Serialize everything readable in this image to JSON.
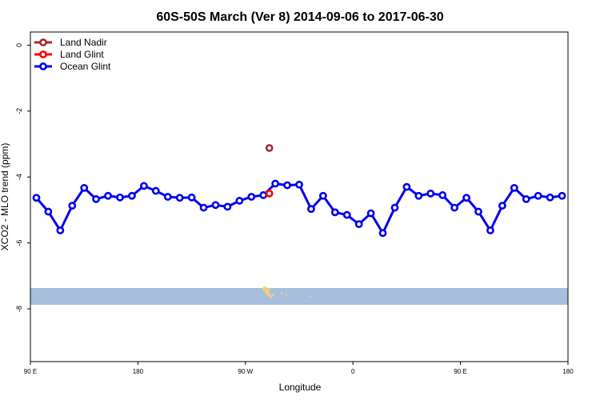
{
  "chart_data": {
    "type": "line",
    "title": "60S-50S March (Ver 8)   2014-09-06 to 2017-06-30",
    "xlabel": "Longitude",
    "ylabel": "XCO2 - MLO trend (ppm)",
    "xlim": [
      90,
      540
    ],
    "ylim": [
      -9.6,
      0.4
    ],
    "x_ticks": [
      {
        "value": 90,
        "label": "90 E"
      },
      {
        "value": 180,
        "label": "180"
      },
      {
        "value": 270,
        "label": "90 W"
      },
      {
        "value": 360,
        "label": "0"
      },
      {
        "value": 450,
        "label": "90 E"
      },
      {
        "value": 540,
        "label": "180"
      }
    ],
    "y_ticks": [
      {
        "value": 0,
        "label": "0"
      },
      {
        "value": -2,
        "label": "-2"
      },
      {
        "value": -4,
        "label": "-4"
      },
      {
        "value": -6,
        "label": "-6"
      },
      {
        "value": -8,
        "label": "-8"
      }
    ],
    "legend_position": "top-left",
    "grid": false,
    "series": [
      {
        "name": "Land Nadir",
        "color": "#a52a2a",
        "points": [
          [
            290,
            -3.12
          ]
        ]
      },
      {
        "name": "Land Glint",
        "color": "#ff0000",
        "points": [
          [
            290,
            -4.5
          ]
        ]
      },
      {
        "name": "Ocean Glint",
        "color": "#0000ee",
        "points": [
          [
            95,
            -4.63
          ],
          [
            105,
            -5.05
          ],
          [
            115,
            -5.62
          ],
          [
            125,
            -4.87
          ],
          [
            135,
            -4.33
          ],
          [
            145,
            -4.67
          ],
          [
            155,
            -4.57
          ],
          [
            165,
            -4.62
          ],
          [
            175,
            -4.57
          ],
          [
            185,
            -4.27
          ],
          [
            195,
            -4.42
          ],
          [
            205,
            -4.6
          ],
          [
            215,
            -4.63
          ],
          [
            225,
            -4.62
          ],
          [
            235,
            -4.93
          ],
          [
            245,
            -4.85
          ],
          [
            255,
            -4.9
          ],
          [
            265,
            -4.72
          ],
          [
            275,
            -4.6
          ],
          [
            285,
            -4.55
          ],
          [
            295,
            -4.2
          ],
          [
            305,
            -4.25
          ],
          [
            315,
            -4.23
          ],
          [
            325,
            -4.97
          ],
          [
            335,
            -4.57
          ],
          [
            345,
            -5.07
          ],
          [
            355,
            -5.15
          ],
          [
            365,
            -5.43
          ],
          [
            375,
            -5.1
          ],
          [
            385,
            -5.7
          ],
          [
            395,
            -4.93
          ],
          [
            405,
            -4.3
          ],
          [
            415,
            -4.57
          ],
          [
            425,
            -4.5
          ],
          [
            435,
            -4.55
          ],
          [
            445,
            -4.93
          ],
          [
            455,
            -4.63
          ],
          [
            465,
            -5.05
          ],
          [
            475,
            -5.62
          ],
          [
            485,
            -4.87
          ],
          [
            495,
            -4.33
          ],
          [
            505,
            -4.67
          ],
          [
            515,
            -4.57
          ],
          [
            525,
            -4.62
          ],
          [
            535,
            -4.57
          ]
        ]
      }
    ],
    "map_strip": {
      "lat_top": -50,
      "lat_bottom": -60,
      "ocean_color": "#a7bfdc",
      "land_color": "#f5d07a"
    }
  }
}
